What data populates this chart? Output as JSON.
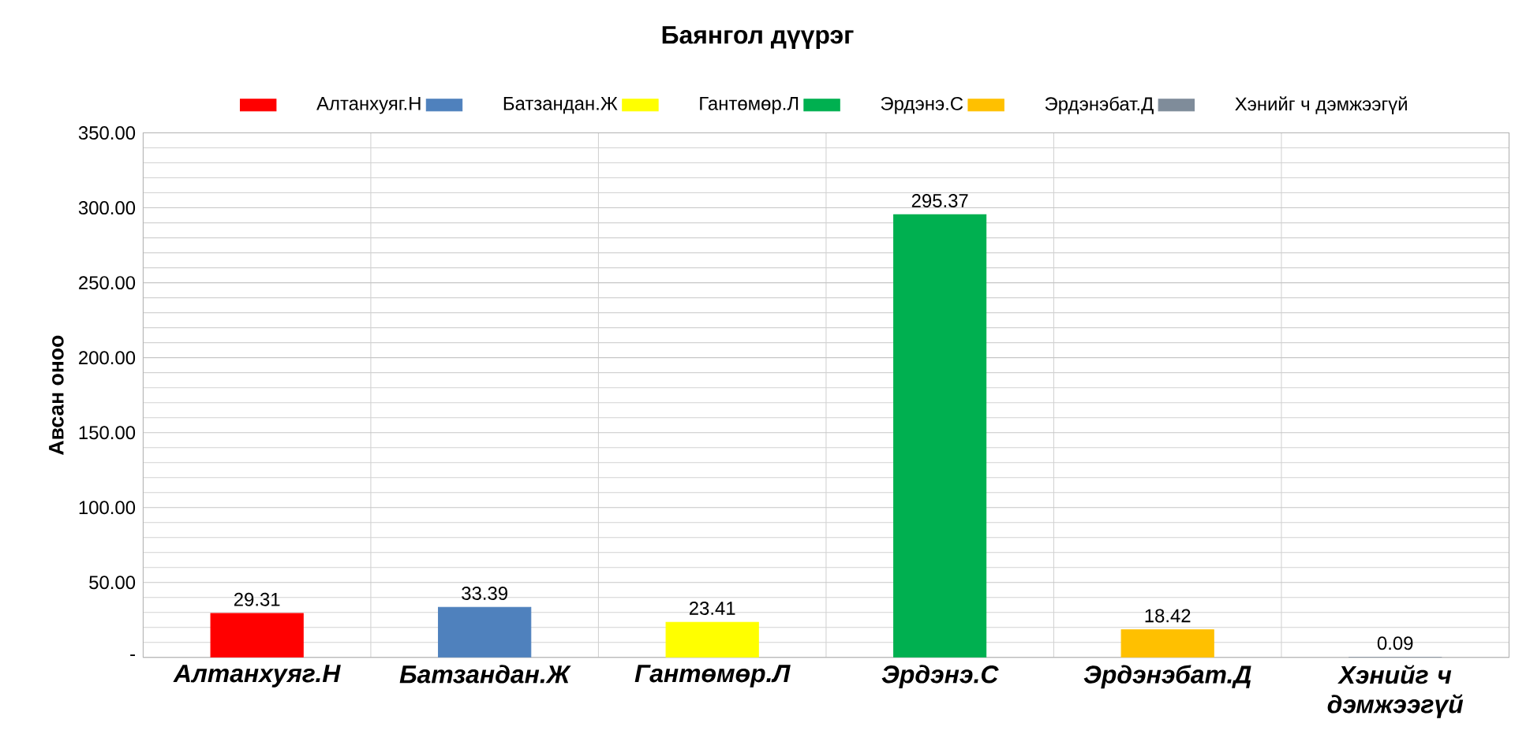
{
  "chart_data": {
    "type": "bar",
    "title": "Баянгол дүүрэг",
    "ylabel": "Авсан оноо",
    "categories": [
      "Алтанхуяг.Н",
      "Батзандан.Ж",
      "Гантөмөр.Л",
      "Эрдэнэ.С",
      "Эрдэнэбат.Д",
      "Хэнийг ч дэмжээгүй"
    ],
    "series": [
      {
        "name": "Алтанхуяг.Н",
        "color": "#ff0000",
        "values": [
          29.31,
          null,
          null,
          null,
          null,
          null
        ]
      },
      {
        "name": "Батзандан.Ж",
        "color": "#4f81bd",
        "values": [
          null,
          33.39,
          null,
          null,
          null,
          null
        ]
      },
      {
        "name": "Гантөмөр.Л",
        "color": "#ffff00",
        "values": [
          null,
          null,
          23.41,
          null,
          null,
          null
        ]
      },
      {
        "name": "Эрдэнэ.С",
        "color": "#00b050",
        "values": [
          null,
          null,
          null,
          295.37,
          null,
          null
        ]
      },
      {
        "name": "Эрдэнэбат.Д",
        "color": "#ffc000",
        "values": [
          null,
          null,
          null,
          null,
          18.42,
          null
        ]
      },
      {
        "name": "Хэнийг ч дэмжээгүй",
        "color": "#7f8c9a",
        "values": [
          null,
          null,
          null,
          null,
          null,
          0.09
        ]
      }
    ],
    "ylim": [
      0,
      350
    ],
    "yticks": [
      {
        "value": 0,
        "label": "-"
      },
      {
        "value": 50,
        "label": "50.00"
      },
      {
        "value": 100,
        "label": "100.00"
      },
      {
        "value": 150,
        "label": "150.00"
      },
      {
        "value": 200,
        "label": "200.00"
      },
      {
        "value": 250,
        "label": "250.00"
      },
      {
        "value": 300,
        "label": "300.00"
      },
      {
        "value": 350,
        "label": "350.00"
      }
    ],
    "data_labels": true,
    "grid": true,
    "legend": "top"
  }
}
